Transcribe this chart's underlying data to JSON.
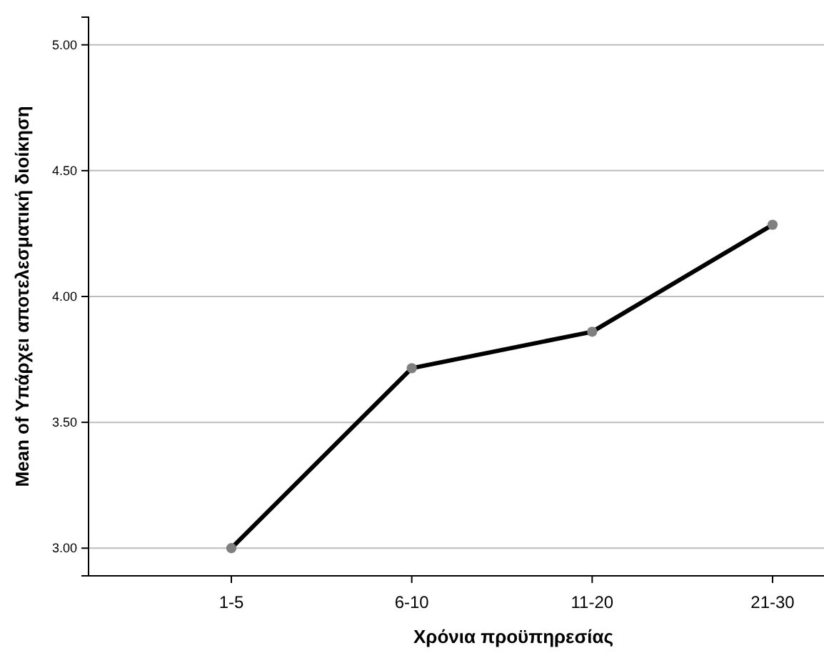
{
  "chart_data": {
    "type": "line",
    "xlabel": "Χρόνια προϋπηρεσίας",
    "ylabel": "Mean of Υπάρχει αποτελεσματική διοίκηση",
    "categories": [
      "1-5",
      "6-10",
      "11-20",
      "21-30"
    ],
    "series": [
      {
        "color": "#000000",
        "values": [
          3.0,
          3.715,
          3.86,
          4.285
        ]
      }
    ],
    "ylim": [
      2.89,
      5.11
    ],
    "yticks": [
      {
        "value": 3,
        "label": "3.00"
      },
      {
        "value": 3.5,
        "label": "3.50"
      },
      {
        "value": 4,
        "label": "4.00"
      },
      {
        "value": 4.5,
        "label": "4.50"
      },
      {
        "value": 5,
        "label": "5.00"
      }
    ],
    "grid": "y",
    "marker": "circle",
    "line_style": "solid"
  }
}
